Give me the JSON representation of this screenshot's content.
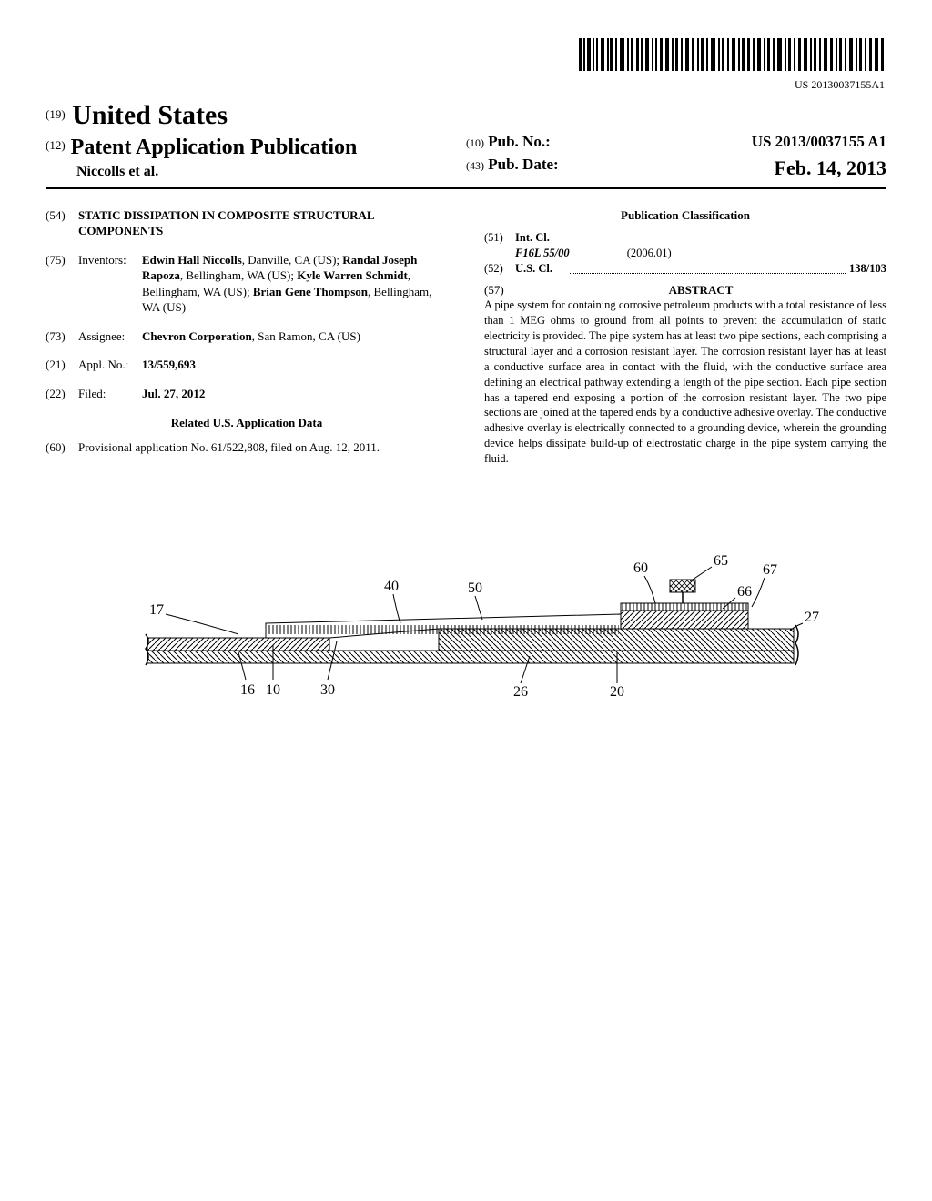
{
  "barcode_number": "US 20130037155A1",
  "header": {
    "prefix19": "(19)",
    "country": "United States",
    "prefix12": "(12)",
    "doc_type": "Patent Application Publication",
    "authors_short": "Niccolls et al.",
    "prefix10": "(10)",
    "pubno_label": "Pub. No.:",
    "pubno": "US 2013/0037155 A1",
    "prefix43": "(43)",
    "pubdate_label": "Pub. Date:",
    "pubdate": "Feb. 14, 2013"
  },
  "left": {
    "num54": "(54)",
    "title": "STATIC DISSIPATION IN COMPOSITE STRUCTURAL COMPONENTS",
    "num75": "(75)",
    "label75": "Inventors:",
    "inventors_html": "<b>Edwin Hall Niccolls</b>, Danville, CA (US); <b>Randal Joseph Rapoza</b>, Bellingham, WA (US); <b>Kyle Warren Schmidt</b>, Bellingham, WA (US); <b>Brian Gene Thompson</b>, Bellingham, WA (US)",
    "num73": "(73)",
    "label73": "Assignee:",
    "assignee_html": "<b>Chevron Corporation</b>, San Ramon, CA (US)",
    "num21": "(21)",
    "label21": "Appl. No.:",
    "applno": "13/559,693",
    "num22": "(22)",
    "label22": "Filed:",
    "filed": "Jul. 27, 2012",
    "related_heading": "Related U.S. Application Data",
    "num60": "(60)",
    "provisional": "Provisional application No. 61/522,808, filed on Aug. 12, 2011."
  },
  "right": {
    "classif_heading": "Publication Classification",
    "num51": "(51)",
    "label51": "Int. Cl.",
    "ipc": "F16L 55/00",
    "ipc_ver": "(2006.01)",
    "num52": "(52)",
    "label52": "U.S. Cl.",
    "uscl": "138/103",
    "num57": "(57)",
    "abstract_label": "ABSTRACT",
    "abstract": "A pipe system for containing corrosive petroleum products with a total resistance of less than 1 MEG ohms to ground from all points to prevent the accumulation of static electricity is provided. The pipe system has at least two pipe sections, each comprising a structural layer and a corrosion resistant layer. The corrosion resistant layer has at least a conductive surface area in contact with the fluid, with the conductive surface area defining an electrical pathway extending a length of the pipe section. Each pipe section has a tapered end exposing a portion of the corrosion resistant layer. The two pipe sections are joined at the tapered ends by a conductive adhesive overlay. The conductive adhesive overlay is electrically connected to a grounding device, wherein the grounding device helps dissipate build-up of electrostatic charge in the pipe system carrying the fluid."
  },
  "figure": {
    "labels": [
      "17",
      "16",
      "10",
      "30",
      "40",
      "50",
      "26",
      "20",
      "60",
      "65",
      "66",
      "67",
      "27"
    ],
    "leader_color": "#000",
    "bg": "#fff"
  }
}
